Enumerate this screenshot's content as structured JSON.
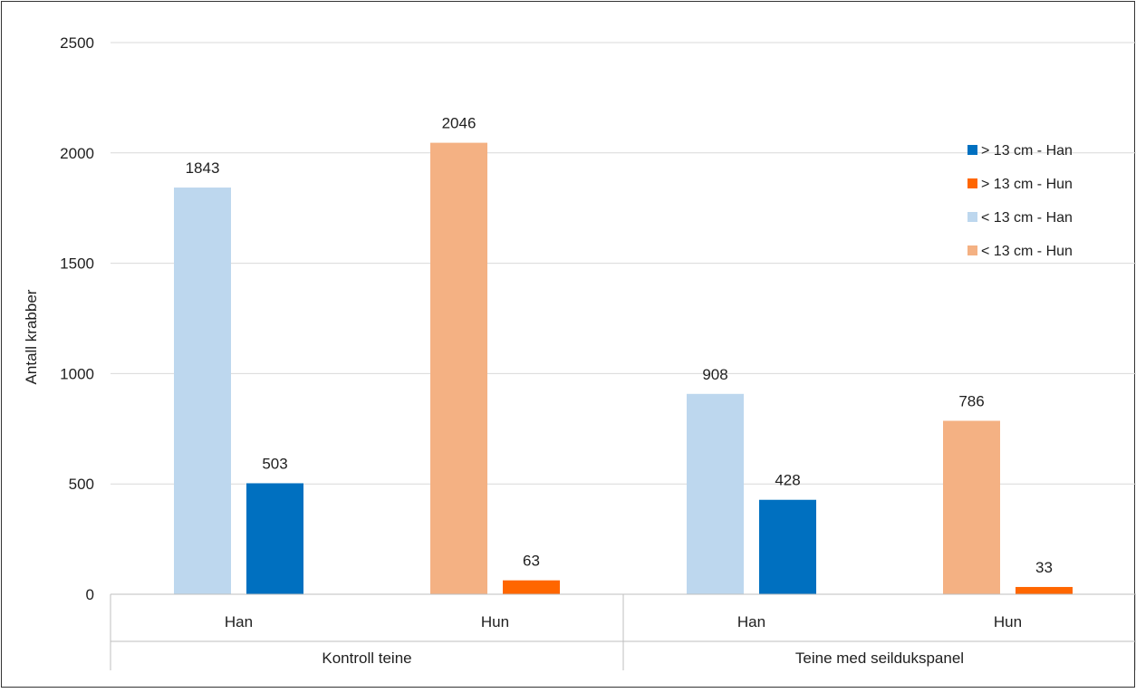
{
  "chart_data": {
    "type": "bar",
    "title": "",
    "xlabel": "",
    "ylabel": "Antall krabber",
    "ylim": [
      0,
      2500
    ],
    "yticks": [
      0,
      500,
      1000,
      1500,
      2000,
      2500
    ],
    "grid": true,
    "legend_position": "top-right",
    "groups": [
      {
        "label": "Kontroll teine",
        "categories": [
          "Han",
          "Hun"
        ]
      },
      {
        "label": "Teine med seildukspanel",
        "categories": [
          "Han",
          "Hun"
        ]
      }
    ],
    "series": [
      {
        "name": "> 13 cm - Han",
        "color": "#0070c0"
      },
      {
        "name": "> 13 cm - Hun",
        "color": "#ff6600"
      },
      {
        "name": "< 13 cm - Han",
        "color": "#bdd7ee"
      },
      {
        "name": "< 13 cm - Hun",
        "color": "#f4b183"
      }
    ],
    "bars": [
      {
        "group": "Kontroll teine",
        "category": "Han",
        "series": "< 13 cm - Han",
        "value": 1843
      },
      {
        "group": "Kontroll teine",
        "category": "Han",
        "series": "> 13 cm - Han",
        "value": 503
      },
      {
        "group": "Kontroll teine",
        "category": "Hun",
        "series": "< 13 cm - Hun",
        "value": 2046
      },
      {
        "group": "Kontroll teine",
        "category": "Hun",
        "series": "> 13 cm - Hun",
        "value": 63
      },
      {
        "group": "Teine med seildukspanel",
        "category": "Han",
        "series": "< 13 cm - Han",
        "value": 908
      },
      {
        "group": "Teine med seildukspanel",
        "category": "Han",
        "series": "> 13 cm - Han",
        "value": 428
      },
      {
        "group": "Teine med seildukspanel",
        "category": "Hun",
        "series": "< 13 cm - Hun",
        "value": 786
      },
      {
        "group": "Teine med seildukspanel",
        "category": "Hun",
        "series": "> 13 cm - Hun",
        "value": 33
      }
    ]
  }
}
